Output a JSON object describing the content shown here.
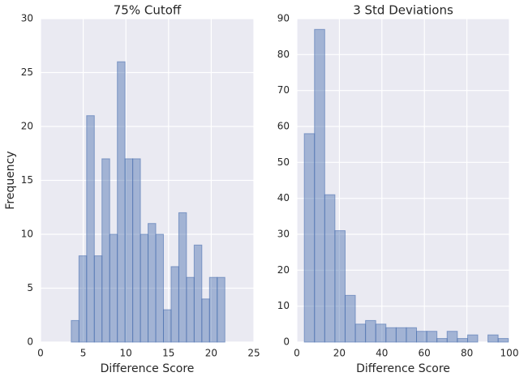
{
  "chart_data": [
    {
      "type": "histogram",
      "title": "75% Cutoff",
      "xlabel": "Difference Score",
      "ylabel": "Frequency",
      "bins": [
        3.6,
        4.5,
        5.4,
        6.3,
        7.2,
        8.1,
        9.0,
        9.9,
        10.8,
        11.7,
        12.6,
        13.5,
        14.4,
        15.3,
        16.2,
        17.1,
        18.0,
        18.9,
        19.8,
        20.7,
        21.6
      ],
      "values": [
        2,
        8,
        21,
        8,
        17,
        10,
        26,
        17,
        17,
        10,
        11,
        10,
        3,
        7,
        12,
        6,
        9,
        4,
        6,
        6
      ],
      "color": "#4c72b0",
      "xlim": [
        0,
        25
      ],
      "xticks": [
        0,
        5,
        10,
        15,
        20,
        25
      ],
      "ylim": [
        0,
        30
      ],
      "yticks": [
        0,
        5,
        10,
        15,
        20,
        25,
        30
      ],
      "grid": true
    },
    {
      "type": "histogram",
      "title": "3 Std Deviations",
      "xlabel": "Difference Score",
      "bins": [
        3.5,
        8.3,
        13.1,
        17.9,
        22.7,
        27.5,
        32.3,
        37.1,
        41.9,
        46.7,
        51.5,
        56.3,
        61.1,
        65.9,
        70.7,
        75.5,
        80.3,
        85.1,
        89.9,
        94.7,
        99.5
      ],
      "values": [
        58,
        87,
        41,
        31,
        13,
        5,
        6,
        5,
        4,
        4,
        4,
        3,
        3,
        1,
        3,
        1,
        2,
        0,
        2,
        1
      ],
      "color": "#4c72b0",
      "xlim": [
        0,
        100
      ],
      "xticks": [
        0,
        20,
        40,
        60,
        80,
        100
      ],
      "ylim": [
        0,
        90
      ],
      "yticks": [
        0,
        10,
        20,
        30,
        40,
        50,
        60,
        70,
        80,
        90
      ],
      "grid": true
    }
  ]
}
